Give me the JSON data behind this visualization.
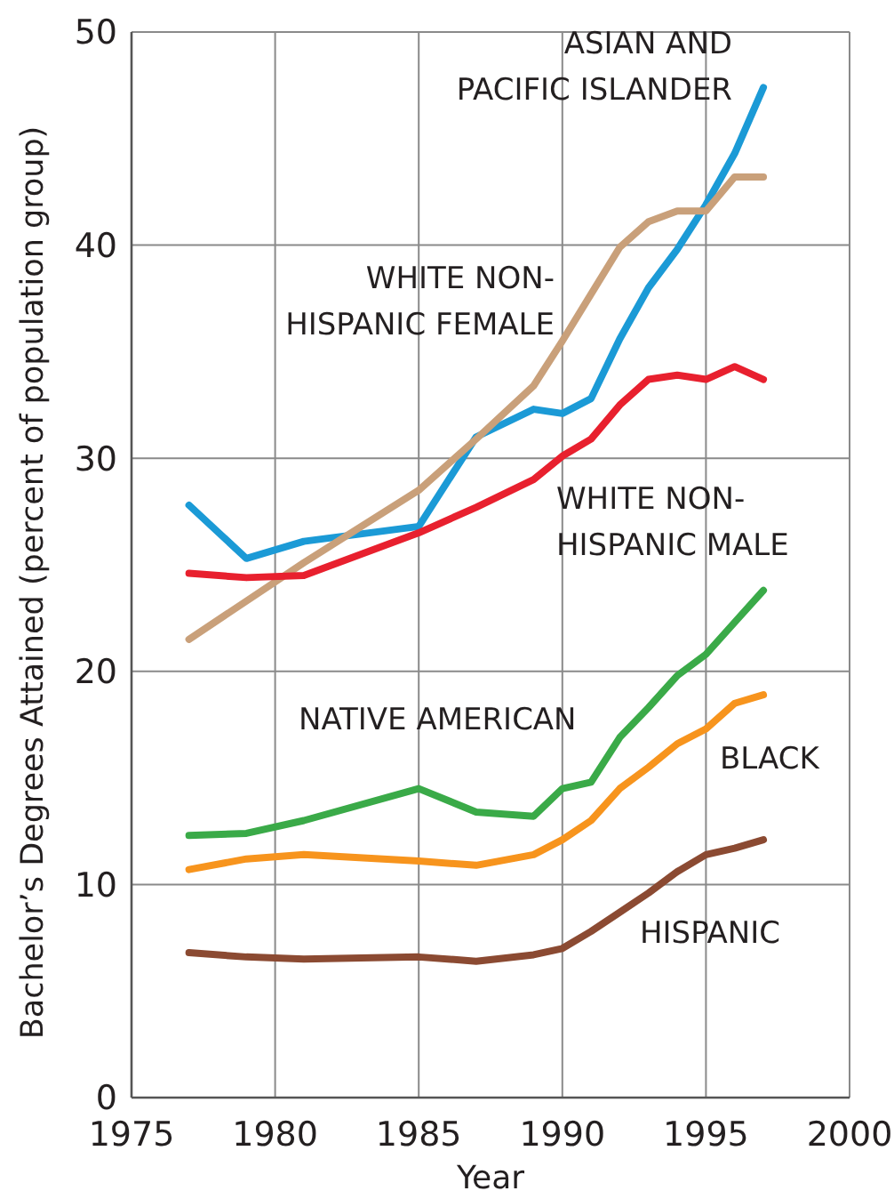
{
  "chart_data": {
    "type": "line",
    "xlabel": "Year",
    "ylabel": "Bachelor’s Degrees Attained (percent of population group)",
    "x": [
      1977,
      1979,
      1981,
      1985,
      1987,
      1989,
      1990,
      1991,
      1992,
      1993,
      1994,
      1995,
      1996,
      1997
    ],
    "xlim": [
      1975,
      2000
    ],
    "xticks": [
      1975,
      1980,
      1985,
      1990,
      1995,
      2000
    ],
    "ylim": [
      0,
      50
    ],
    "yticks": [
      0,
      10,
      20,
      30,
      40,
      50
    ],
    "grid": true,
    "marker": "none",
    "line_style": "solid",
    "series": [
      {
        "name": "ASIAN AND PACIFIC ISLANDER",
        "color": "#1b9ad6",
        "values": [
          27.8,
          25.3,
          26.1,
          26.8,
          31.0,
          32.3,
          32.1,
          32.8,
          35.6,
          38.0,
          39.8,
          41.9,
          44.3,
          47.4
        ]
      },
      {
        "name": "WHITE NON-HISPANIC FEMALE",
        "color": "#c9a07a",
        "values": [
          21.5,
          23.3,
          25.1,
          28.5,
          30.9,
          33.4,
          35.5,
          37.7,
          39.9,
          41.1,
          41.6,
          41.6,
          43.2,
          43.2
        ]
      },
      {
        "name": "WHITE NON-HISPANIC MALE",
        "color": "#e8202e",
        "values": [
          24.6,
          24.4,
          24.5,
          26.5,
          27.7,
          29.0,
          30.1,
          30.9,
          32.5,
          33.7,
          33.9,
          33.7,
          34.3,
          33.7
        ]
      },
      {
        "name": "NATIVE AMERICAN",
        "color": "#3aaa48",
        "values": [
          12.3,
          12.4,
          13.0,
          14.5,
          13.4,
          13.2,
          14.5,
          14.8,
          16.9,
          18.3,
          19.8,
          20.8,
          22.3,
          23.8
        ]
      },
      {
        "name": "BLACK",
        "color": "#f7941d",
        "values": [
          10.7,
          11.2,
          11.4,
          11.1,
          10.9,
          11.4,
          12.1,
          13.0,
          14.5,
          15.5,
          16.6,
          17.3,
          18.5,
          18.9
        ]
      },
      {
        "name": "HISPANIC",
        "color": "#8b4a32",
        "values": [
          6.8,
          6.6,
          6.5,
          6.6,
          6.4,
          6.7,
          7.0,
          7.8,
          8.7,
          9.6,
          10.6,
          11.4,
          11.7,
          12.1
        ]
      }
    ]
  }
}
